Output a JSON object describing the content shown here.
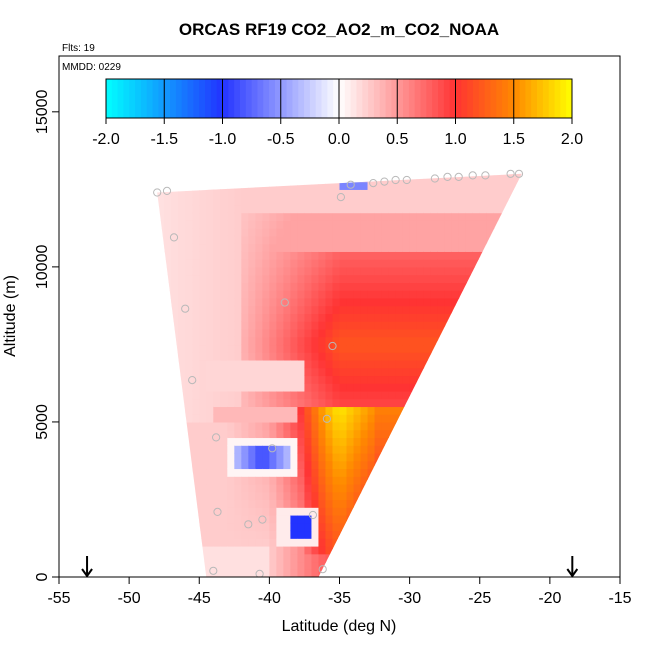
{
  "chart_data": {
    "type": "heatmap",
    "title": "ORCAS RF19 CO2_AO2_m_CO2_NOAA",
    "flights_label": "Flts: 19",
    "date_label": "MMDD: 0229",
    "xlabel": "Latitude (deg N)",
    "ylabel": "Altitude (m)",
    "xlim": [
      -55,
      -15
    ],
    "ylim": [
      0,
      16800
    ],
    "x_ticks": [
      -55,
      -50,
      -45,
      -40,
      -35,
      -30,
      -25,
      -20,
      -15
    ],
    "x_tick_labels": [
      "-55",
      "-50",
      "-45",
      "-40",
      "-35",
      "-30",
      "-25",
      "-20",
      "-15"
    ],
    "y_ticks": [
      0,
      5000,
      10000,
      15000
    ],
    "y_tick_labels": [
      "0",
      "5000",
      "10000",
      "15000"
    ],
    "colorbar": {
      "range": [
        -2.0,
        2.0
      ],
      "ticks": [
        -2.0,
        -1.5,
        -1.0,
        -0.5,
        0.0,
        0.5,
        1.0,
        1.5,
        2.0
      ],
      "tick_labels": [
        "-2.0",
        "-1.5",
        "-1.0",
        "-0.5",
        "0.0",
        "0.5",
        "1.0",
        "1.5",
        "2.0"
      ],
      "stops": [
        {
          "v": -2.0,
          "c": "#00ffff"
        },
        {
          "v": -1.0,
          "c": "#2233ff"
        },
        {
          "v": 0.0,
          "c": "#ffffff"
        },
        {
          "v": 1.0,
          "c": "#ff3333"
        },
        {
          "v": 1.5,
          "c": "#ff8800"
        },
        {
          "v": 2.0,
          "c": "#ffff00"
        }
      ]
    },
    "curtain_outline": [
      [
        -48.0,
        12400
      ],
      [
        -22.0,
        13000
      ],
      [
        -36.5,
        0
      ],
      [
        -44.5,
        0
      ]
    ],
    "arrows_lat": [
      -53,
      -18.4
    ],
    "features": [
      {
        "lat": [
          -42,
          -22
        ],
        "alt": [
          5000,
          13000
        ],
        "value": 1.0,
        "note": "main enhanced band"
      },
      {
        "lat": [
          -37,
          -33
        ],
        "alt": [
          1000,
          5500
        ],
        "value": 1.3,
        "note": "orange core near surface"
      },
      {
        "lat": [
          -42.5,
          -38.5
        ],
        "alt": [
          3600,
          4300
        ],
        "value": -0.9,
        "note": "blue layer"
      },
      {
        "lat": [
          -38.5,
          -36.5
        ],
        "alt": [
          1300,
          2000
        ],
        "value": -1.0,
        "note": "blue patch"
      },
      {
        "lat": [
          -35,
          -32.5
        ],
        "alt": [
          12500,
          12800
        ],
        "value": -0.6,
        "note": "upper blue strip"
      }
    ],
    "points": [
      {
        "lat": -48.0,
        "alt": 12400
      },
      {
        "lat": -47.3,
        "alt": 12450
      },
      {
        "lat": -46.8,
        "alt": 10950
      },
      {
        "lat": -46.0,
        "alt": 8650
      },
      {
        "lat": -45.5,
        "alt": 6350
      },
      {
        "lat": -43.8,
        "alt": 4500
      },
      {
        "lat": -43.7,
        "alt": 2100
      },
      {
        "lat": -44.0,
        "alt": 200
      },
      {
        "lat": -41.5,
        "alt": 1700
      },
      {
        "lat": -40.5,
        "alt": 1850
      },
      {
        "lat": -40.7,
        "alt": 100
      },
      {
        "lat": -39.8,
        "alt": 4150
      },
      {
        "lat": -38.9,
        "alt": 8850
      },
      {
        "lat": -36.2,
        "alt": 250
      },
      {
        "lat": -36.9,
        "alt": 2000
      },
      {
        "lat": -35.5,
        "alt": 7450
      },
      {
        "lat": -35.9,
        "alt": 5100
      },
      {
        "lat": -34.9,
        "alt": 12250
      },
      {
        "lat": -34.2,
        "alt": 12650
      },
      {
        "lat": -32.6,
        "alt": 12700
      },
      {
        "lat": -31.8,
        "alt": 12750
      },
      {
        "lat": -31.0,
        "alt": 12800
      },
      {
        "lat": -30.2,
        "alt": 12800
      },
      {
        "lat": -28.2,
        "alt": 12850
      },
      {
        "lat": -27.3,
        "alt": 12900
      },
      {
        "lat": -26.5,
        "alt": 12900
      },
      {
        "lat": -25.5,
        "alt": 12950
      },
      {
        "lat": -24.6,
        "alt": 12950
      },
      {
        "lat": -22.8,
        "alt": 13000
      },
      {
        "lat": -22.2,
        "alt": 13000
      }
    ]
  }
}
